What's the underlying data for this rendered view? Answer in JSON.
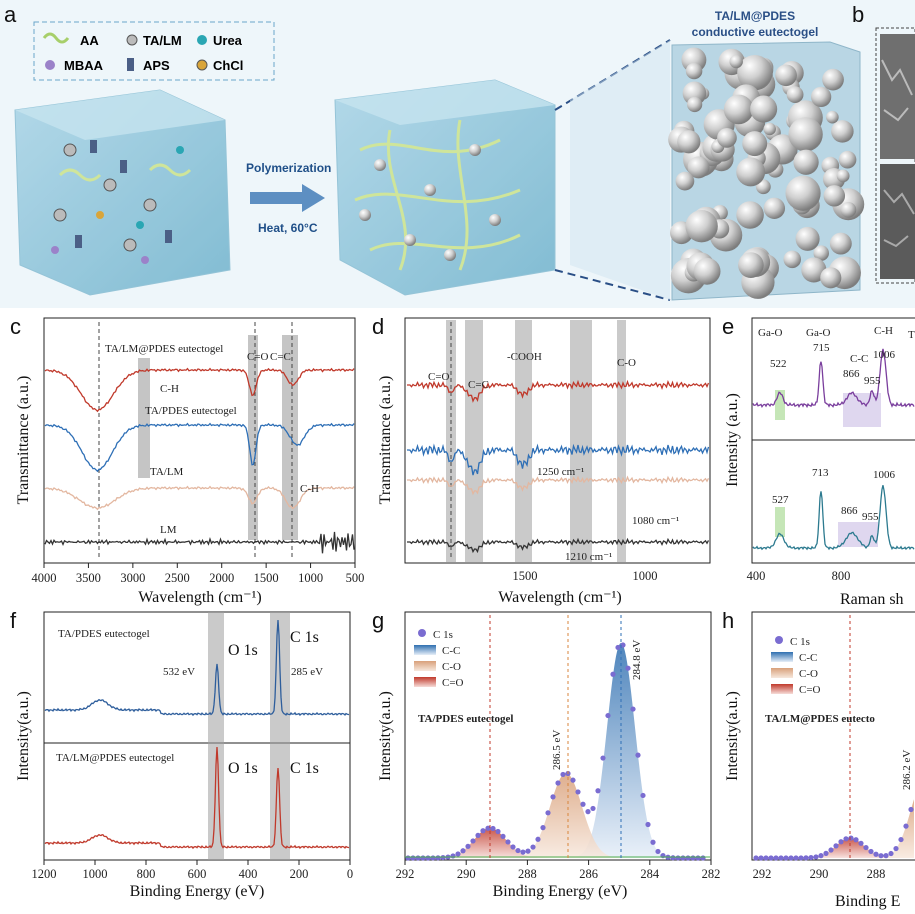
{
  "panel_labels": {
    "a": "a",
    "b": "b",
    "c": "c",
    "d": "d",
    "e": "e",
    "f": "f",
    "g": "g",
    "h": "h"
  },
  "schematic": {
    "legend": {
      "aa": "AA",
      "ta_lm": "TA/LM",
      "urea": "Urea",
      "mbaa": "MBAA",
      "aps": "APS",
      "chcl": "ChCl"
    },
    "arrow_top": "Polymerization",
    "arrow_bottom": "Heat, 60°C",
    "gel_title_1": "TA/LM@PDES",
    "gel_title_2": "conductive eutectogel",
    "colors": {
      "gel": "#8fc6dc",
      "fiber": "#cfe59a",
      "bead": "#d9d9d9",
      "accent": "#2a4f86"
    }
  },
  "ftir_c": {
    "ylabel": "Transmittance (a.u.)",
    "xlabel": "Wavelength (cm⁻¹)",
    "xticks": [
      "4000",
      "3500",
      "3000",
      "2500",
      "2000",
      "1500",
      "1000",
      "500"
    ],
    "series": [
      {
        "name": "TA/LM@PDES eutectogel",
        "color": "#c0392b"
      },
      {
        "name": "TA/PDES eutectogel",
        "color": "#2e6fb6"
      },
      {
        "name": "TA/LM",
        "color": "#e3b7a0"
      },
      {
        "name": "LM",
        "color": "#333333"
      }
    ],
    "ann_ch": "C-H",
    "ann_co": "C=O",
    "ann_cc": "C=C",
    "ann_ch2": "C-H"
  },
  "ftir_d": {
    "ylabel": "Transmittance (a.u.)",
    "xlabel": "Wavelength (cm⁻¹)",
    "xticks": [
      "1500",
      "1000"
    ],
    "ann_co": "C=O",
    "ann_cc": "C=C",
    "ann_cooh": "-COOH",
    "ann_co2": "C-O",
    "ann_1250": "1250 cm⁻¹",
    "ann_1080": "1080 cm⁻¹",
    "ann_1210": "1210 cm⁻¹"
  },
  "raman_e": {
    "ylabel": "Intensity (a.u.)",
    "xlabel": "Raman sh",
    "xticks": [
      "400",
      "800"
    ],
    "top": {
      "ga_o1": "Ga-O",
      "ga_o2": "Ga-O",
      "ch": "C-H",
      "cc": "C-C",
      "p522": "522",
      "p715": "715",
      "p1006": "1006",
      "p866": "866",
      "p955": "955",
      "t": "T"
    },
    "bottom": {
      "p527": "527",
      "p713": "713",
      "p1006": "1006",
      "p866": "866",
      "p955": "955"
    },
    "top_color": "#7a3e9d",
    "bottom_color": "#2c7a8f"
  },
  "xps_f": {
    "ylabel": "Intensity(a.u.)",
    "xlabel": "Binding Energy (eV)",
    "xticks": [
      "1200",
      "1000",
      "800",
      "600",
      "400",
      "200",
      "0"
    ],
    "top_name": "TA/PDES eutectogel",
    "bottom_name": "TA/LM@PDES eutectogel",
    "o1s": "O 1s",
    "c1s": "C 1s",
    "ev532": "532 eV",
    "ev285": "285 eV"
  },
  "xps_g": {
    "ylabel": "Intensity(a.u.)",
    "xlabel": "Binding Energy (eV)",
    "xticks": [
      "292",
      "290",
      "288",
      "286",
      "284",
      "282"
    ],
    "legend": {
      "c1s": "C 1s",
      "cc": "C-C",
      "co": "C-O",
      "c_eq_o": "C=O"
    },
    "sample": "TA/PDES eutectogel",
    "peak1": "284.8 eV",
    "peak2": "286.5 eV"
  },
  "xps_h": {
    "ylabel": "Intensity(a.u.)",
    "xlabel": "Binding E",
    "xticks": [
      "292",
      "290",
      "288"
    ],
    "legend": {
      "c1s": "C 1s",
      "cc": "C-C",
      "co": "C-O",
      "c_eq_o": "C=O"
    },
    "sample": "TA/LM@PDES eutecto",
    "peak2": "286.2 eV"
  }
}
